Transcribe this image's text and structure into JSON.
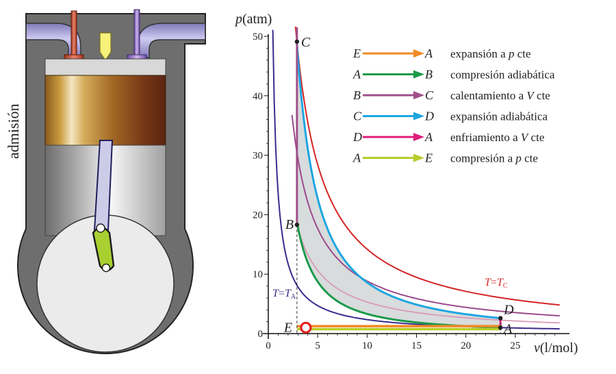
{
  "side_label": "admisión",
  "colors": {
    "E_A": "#f08a24",
    "A_B": "#1a9a4a",
    "B_C": "#a0508a",
    "C_D": "#1ea6e0",
    "D_A": "#e01e7a",
    "A_E": "#b8cc2a",
    "T_C": "#d42424",
    "T_A": "#3a2a8c",
    "region": "#d8dcdc"
  },
  "chart_data": {
    "type": "line",
    "xlabel_var": "v",
    "xlabel_unit": "(l/mol)",
    "ylabel_var": "p",
    "ylabel_unit": "(atm)",
    "xlim": [
      0,
      30
    ],
    "ylim": [
      0,
      50
    ],
    "xticks": [
      "0",
      "5",
      "10",
      "15",
      "20",
      "25"
    ],
    "yticks": [
      "0",
      "10",
      "20",
      "30",
      "40",
      "50"
    ],
    "points": [
      {
        "name": "A",
        "x": 23.5,
        "y": 1
      },
      {
        "name": "B",
        "x": 2.9,
        "y": 18.3
      },
      {
        "name": "C",
        "x": 2.9,
        "y": 49.1
      },
      {
        "name": "D",
        "x": 23.5,
        "y": 2.6
      },
      {
        "name": "E",
        "x": 2.9,
        "y": 1
      }
    ],
    "isotherms": [
      {
        "label_var": "T",
        "label_sub": "C",
        "k": 142
      },
      {
        "label_var": "T",
        "label_sub": "A",
        "k": 23.5
      }
    ],
    "legend": [
      {
        "from": "E",
        "to": "A",
        "text_parts": [
          {
            "t": "expansión a "
          },
          {
            "t": "p",
            "i": true
          },
          {
            "t": " cte"
          }
        ]
      },
      {
        "from": "A",
        "to": "B",
        "text_parts": [
          {
            "t": "compresión adiabática"
          }
        ]
      },
      {
        "from": "B",
        "to": "C",
        "text_parts": [
          {
            "t": "calentamiento a "
          },
          {
            "t": "V",
            "i": true
          },
          {
            "t": " cte"
          }
        ]
      },
      {
        "from": "C",
        "to": "D",
        "text_parts": [
          {
            "t": "expansión adiabática"
          }
        ]
      },
      {
        "from": "D",
        "to": "A",
        "text_parts": [
          {
            "t": "enfriamiento a "
          },
          {
            "t": "V",
            "i": true
          },
          {
            "t": " cte"
          }
        ]
      },
      {
        "from": "A",
        "to": "E",
        "text_parts": [
          {
            "t": "compresión a "
          },
          {
            "t": "p",
            "i": true
          },
          {
            "t": " cte"
          }
        ]
      }
    ]
  }
}
